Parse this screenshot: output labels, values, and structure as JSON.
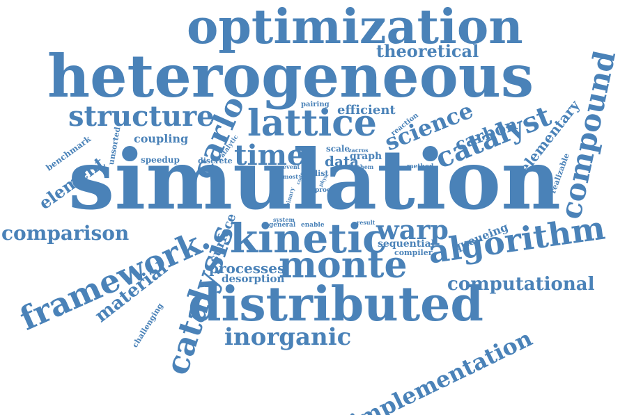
{
  "word_color": "#4a82b8",
  "background_color": "#ffffff",
  "words": [
    "simulation",
    "heterogeneous",
    "optimization",
    "distributed",
    "kinetic",
    "monte",
    "algorithm",
    "lattice",
    "compound",
    "framework",
    "catalysis",
    "carlo",
    "structure",
    "time",
    "catalyst",
    "warp",
    "inorganic",
    "comparison",
    "computational",
    "implementation",
    "science",
    "theoretical",
    "carbon",
    "material",
    "element",
    "elementary",
    "processes",
    "data",
    "efficient",
    "coupling",
    "queueing",
    "desorption",
    "surface",
    "sequential",
    "graph",
    "scale",
    "benchmark",
    "speedup",
    "discrete",
    "unsorted",
    "challenging",
    "realizable",
    "pairing",
    "reaction",
    "catalytic",
    "zacros",
    "chem",
    "method",
    "event",
    "most",
    "list",
    "code",
    "phys",
    "proc",
    "binary",
    "system",
    "general",
    "enable",
    "result",
    "compiler"
  ]
}
